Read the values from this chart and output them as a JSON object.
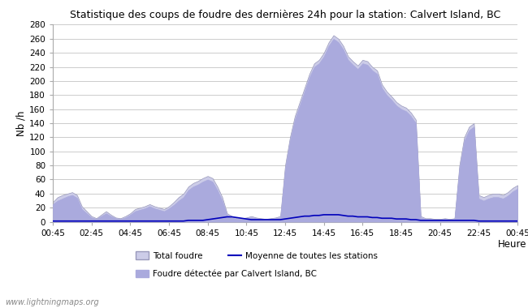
{
  "title": "Statistique des coups de foudre des dernières 24h pour la station: Calvert Island, BC",
  "xlabel": "Heure",
  "ylabel": "Nb /h",
  "ylim": [
    0,
    280
  ],
  "yticks": [
    0,
    20,
    40,
    60,
    80,
    100,
    120,
    140,
    160,
    180,
    200,
    220,
    240,
    260,
    280
  ],
  "xtick_labels": [
    "00:45",
    "02:45",
    "04:45",
    "06:45",
    "08:45",
    "10:45",
    "12:45",
    "14:45",
    "16:45",
    "18:45",
    "20:45",
    "22:45",
    "00:45"
  ],
  "watermark": "www.lightningmaps.org",
  "bg_color": "#ffffff",
  "grid_color": "#cccccc",
  "fill_color": "#cccce8",
  "fill_edge_color": "#9999bb",
  "local_fill_color": "#aaaadd",
  "moyenne_color": "#0000bb",
  "time_points": [
    0.0,
    0.25,
    0.5,
    0.75,
    1.0,
    1.25,
    1.5,
    1.75,
    2.0,
    2.25,
    2.5,
    2.75,
    3.0,
    3.25,
    3.5,
    3.75,
    4.0,
    4.25,
    4.5,
    4.75,
    5.0,
    5.25,
    5.5,
    5.75,
    6.0,
    6.25,
    6.5,
    6.75,
    7.0,
    7.25,
    7.5,
    7.75,
    8.0,
    8.25,
    8.5,
    8.75,
    9.0,
    9.25,
    9.5,
    9.75,
    10.0,
    10.25,
    10.5,
    10.75,
    11.0,
    11.25,
    11.5,
    11.75,
    12.0,
    12.25,
    12.5,
    12.75,
    13.0,
    13.25,
    13.5,
    13.75,
    14.0,
    14.25,
    14.5,
    14.75,
    15.0,
    15.25,
    15.5,
    15.75,
    16.0,
    16.25,
    16.5,
    16.75,
    17.0,
    17.25,
    17.5,
    17.75,
    18.0,
    18.25,
    18.5,
    18.75,
    19.0,
    19.25,
    19.5,
    19.75,
    20.0,
    20.25,
    20.5,
    20.75,
    21.0,
    21.25,
    21.5,
    21.75,
    22.0,
    22.25,
    22.5,
    22.75,
    23.0,
    23.25,
    23.5,
    23.75,
    24.0
  ],
  "total_foudre": [
    28,
    35,
    38,
    40,
    42,
    38,
    22,
    15,
    8,
    5,
    10,
    15,
    10,
    6,
    5,
    8,
    12,
    18,
    20,
    22,
    25,
    22,
    20,
    18,
    22,
    28,
    35,
    40,
    50,
    55,
    58,
    62,
    65,
    62,
    50,
    35,
    12,
    8,
    5,
    5,
    6,
    8,
    6,
    5,
    4,
    5,
    6,
    8,
    80,
    120,
    150,
    170,
    190,
    210,
    225,
    230,
    240,
    255,
    265,
    260,
    250,
    235,
    228,
    222,
    230,
    228,
    220,
    215,
    195,
    185,
    178,
    170,
    165,
    162,
    155,
    145,
    8,
    5,
    5,
    4,
    4,
    5,
    4,
    5,
    80,
    120,
    135,
    140,
    38,
    35,
    38,
    40,
    40,
    38,
    42,
    48,
    52
  ],
  "local_foudre": [
    25,
    30,
    33,
    36,
    38,
    34,
    18,
    12,
    6,
    4,
    8,
    12,
    8,
    5,
    4,
    6,
    10,
    15,
    17,
    19,
    22,
    19,
    17,
    15,
    19,
    24,
    30,
    35,
    45,
    50,
    53,
    57,
    60,
    57,
    45,
    30,
    10,
    6,
    4,
    4,
    5,
    6,
    5,
    4,
    3,
    4,
    5,
    6,
    75,
    115,
    145,
    165,
    185,
    205,
    220,
    225,
    235,
    250,
    260,
    255,
    245,
    230,
    223,
    217,
    225,
    223,
    215,
    210,
    190,
    180,
    173,
    165,
    160,
    157,
    150,
    140,
    6,
    4,
    4,
    3,
    3,
    4,
    3,
    4,
    75,
    115,
    130,
    135,
    33,
    30,
    33,
    35,
    35,
    33,
    37,
    43,
    47
  ],
  "moyenne": [
    1,
    1,
    1,
    1,
    1,
    1,
    1,
    1,
    1,
    1,
    1,
    1,
    1,
    1,
    1,
    1,
    1,
    1,
    1,
    1,
    1,
    1,
    1,
    1,
    1,
    1,
    1,
    1,
    2,
    2,
    2,
    2,
    3,
    4,
    5,
    6,
    7,
    7,
    6,
    5,
    4,
    3,
    3,
    3,
    3,
    3,
    3,
    3,
    4,
    5,
    6,
    7,
    8,
    8,
    9,
    9,
    10,
    10,
    10,
    10,
    9,
    8,
    8,
    7,
    7,
    7,
    6,
    6,
    5,
    5,
    5,
    4,
    4,
    4,
    3,
    3,
    2,
    2,
    2,
    2,
    2,
    2,
    2,
    2,
    2,
    2,
    2,
    2,
    1,
    1,
    1,
    1,
    1,
    1,
    1,
    1,
    1
  ]
}
